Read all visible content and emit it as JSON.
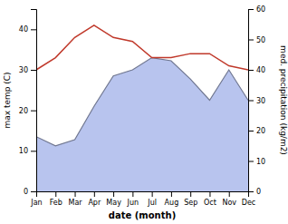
{
  "chart_data": {
    "type": "line",
    "categories": [
      "Jan",
      "Feb",
      "Mar",
      "Apr",
      "May",
      "Jun",
      "Jul",
      "Aug",
      "Sep",
      "Oct",
      "Nov",
      "Dec"
    ],
    "xlabel": "date (month)",
    "ylabel": "max temp (C)",
    "y2label": "med. precipitation (kg/m2)",
    "series": [
      {
        "type": "area",
        "axis": "y2",
        "color": "#b8c4ee",
        "values": [
          18,
          15,
          17,
          28,
          38,
          40,
          44,
          43,
          37,
          30,
          40,
          30
        ]
      },
      {
        "type": "line",
        "color": "#c0392b",
        "values": [
          30,
          33,
          38,
          41,
          38,
          37,
          33,
          33,
          34,
          34,
          31,
          30
        ]
      }
    ],
    "ylim": [
      0,
      45
    ],
    "yticks": [
      0,
      10,
      20,
      30,
      40
    ],
    "y2lim": [
      0,
      60
    ],
    "y2ticks": [
      0,
      10,
      20,
      30,
      40,
      50,
      60
    ],
    "grid": false
  }
}
